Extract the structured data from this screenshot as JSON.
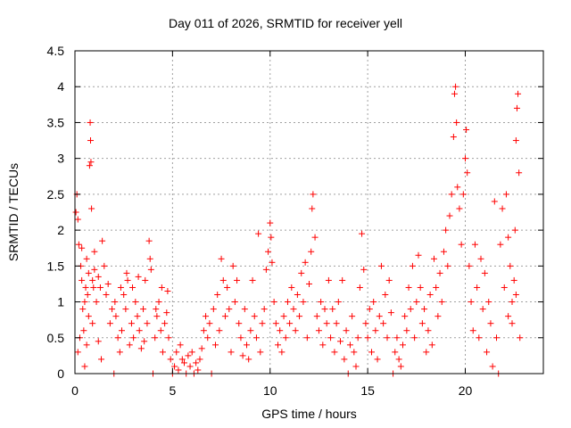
{
  "chart_data": {
    "type": "scatter",
    "title": "Day 011 of 2026, SRMTID for receiver yell",
    "xlabel": "GPS time / hours",
    "ylabel": "SRMTID / TECUs",
    "xlim": [
      0,
      24
    ],
    "ylim": [
      0,
      4.5
    ],
    "xticks": [
      0,
      5,
      10,
      15,
      20
    ],
    "yticks": [
      0,
      0.5,
      1,
      1.5,
      2,
      2.5,
      3,
      3.5,
      4,
      4.5
    ],
    "xtick_labels": [
      "0",
      "5",
      "10",
      "15",
      "20"
    ],
    "ytick_labels": [
      "0",
      "0.5",
      "1",
      "1.5",
      "2",
      "2.5",
      "3",
      "3.5",
      "4",
      "4.5"
    ],
    "grid": true,
    "marker": "+",
    "color": "#ff0000",
    "series": [
      {
        "name": "SRMTID",
        "points": [
          [
            0.05,
            2.25
          ],
          [
            0.1,
            2.5
          ],
          [
            0.15,
            2.15
          ],
          [
            0.2,
            1.8
          ],
          [
            0.3,
            1.5
          ],
          [
            0.35,
            1.3
          ],
          [
            0.4,
            0.9
          ],
          [
            0.45,
            0.6
          ],
          [
            0.5,
            1.0
          ],
          [
            0.55,
            1.2
          ],
          [
            0.6,
            1.6
          ],
          [
            0.65,
            1.1
          ],
          [
            0.7,
            0.8
          ],
          [
            0.75,
            2.9
          ],
          [
            0.78,
            3.5
          ],
          [
            0.8,
            3.25
          ],
          [
            0.82,
            2.95
          ],
          [
            0.85,
            2.3
          ],
          [
            0.9,
            1.3
          ],
          [
            0.95,
            1.2
          ],
          [
            1.0,
            1.45
          ],
          [
            1.1,
            1.0
          ],
          [
            1.2,
            1.35
          ],
          [
            1.3,
            1.2
          ],
          [
            1.4,
            1.85
          ],
          [
            1.5,
            1.5
          ],
          [
            1.6,
            1.1
          ],
          [
            1.7,
            1.25
          ],
          [
            1.8,
            0.7
          ],
          [
            1.9,
            0.9
          ],
          [
            0.15,
            0.3
          ],
          [
            0.25,
            0.5
          ],
          [
            0.5,
            0.1
          ],
          [
            0.6,
            0.4
          ],
          [
            1.35,
            0.2
          ],
          [
            1.2,
            0.45
          ],
          [
            0.9,
            0.7
          ],
          [
            1.0,
            1.7
          ],
          [
            0.35,
            1.75
          ],
          [
            0.7,
            1.4
          ],
          [
            2.0,
            0.0
          ],
          [
            2.1,
            0.8
          ],
          [
            2.2,
            0.5
          ],
          [
            2.3,
            0.3
          ],
          [
            2.4,
            0.6
          ],
          [
            2.5,
            1.1
          ],
          [
            2.6,
            0.9
          ],
          [
            2.7,
            1.3
          ],
          [
            2.8,
            0.4
          ],
          [
            2.9,
            0.7
          ],
          [
            3.0,
            0.5
          ],
          [
            3.1,
            1.0
          ],
          [
            3.2,
            0.8
          ],
          [
            3.3,
            0.6
          ],
          [
            3.4,
            0.35
          ],
          [
            3.5,
            0.9
          ],
          [
            3.6,
            1.3
          ],
          [
            3.7,
            0.7
          ],
          [
            3.8,
            1.85
          ],
          [
            3.9,
            1.45
          ],
          [
            4.0,
            0.0
          ],
          [
            4.1,
            0.5
          ],
          [
            4.2,
            0.8
          ],
          [
            4.3,
            1.0
          ],
          [
            4.4,
            0.6
          ],
          [
            4.5,
            0.3
          ],
          [
            4.6,
            0.7
          ],
          [
            4.7,
            0.85
          ],
          [
            4.8,
            0.5
          ],
          [
            4.9,
            0.2
          ],
          [
            2.05,
            1.0
          ],
          [
            2.35,
            1.2
          ],
          [
            2.65,
            1.4
          ],
          [
            2.95,
            1.2
          ],
          [
            3.25,
            1.35
          ],
          [
            3.55,
            0.45
          ],
          [
            3.85,
            1.6
          ],
          [
            4.15,
            0.9
          ],
          [
            4.45,
            1.2
          ],
          [
            4.75,
            1.15
          ],
          [
            5.0,
            0.0
          ],
          [
            5.1,
            0.1
          ],
          [
            5.2,
            0.3
          ],
          [
            5.3,
            0.05
          ],
          [
            5.4,
            0.4
          ],
          [
            5.5,
            0.2
          ],
          [
            5.6,
            0.15
          ],
          [
            5.7,
            0.0
          ],
          [
            5.8,
            0.25
          ],
          [
            5.9,
            0.1
          ],
          [
            6.0,
            0.3
          ],
          [
            6.1,
            0.0
          ],
          [
            6.2,
            0.15
          ],
          [
            6.3,
            0.05
          ],
          [
            6.4,
            0.2
          ],
          [
            6.5,
            0.35
          ],
          [
            6.6,
            0.6
          ],
          [
            6.7,
            0.8
          ],
          [
            6.8,
            0.5
          ],
          [
            6.9,
            0.7
          ],
          [
            7.0,
            0.0
          ],
          [
            7.1,
            0.9
          ],
          [
            7.2,
            0.4
          ],
          [
            7.3,
            1.1
          ],
          [
            7.4,
            0.6
          ],
          [
            7.5,
            1.6
          ],
          [
            7.6,
            1.3
          ],
          [
            7.7,
            0.8
          ],
          [
            7.8,
            1.2
          ],
          [
            7.9,
            0.9
          ],
          [
            8.0,
            0.3
          ],
          [
            8.1,
            1.5
          ],
          [
            8.2,
            1.0
          ],
          [
            8.3,
            1.3
          ],
          [
            8.4,
            0.7
          ],
          [
            8.5,
            0.5
          ],
          [
            8.6,
            0.25
          ],
          [
            8.7,
            0.9
          ],
          [
            8.8,
            0.4
          ],
          [
            8.9,
            0.2
          ],
          [
            9.0,
            0.6
          ],
          [
            9.1,
            1.3
          ],
          [
            9.2,
            0.8
          ],
          [
            9.3,
            0.5
          ],
          [
            9.4,
            1.95
          ],
          [
            9.5,
            0.3
          ],
          [
            9.6,
            0.7
          ],
          [
            9.7,
            0.9
          ],
          [
            9.8,
            1.45
          ],
          [
            9.9,
            1.7
          ],
          [
            10.0,
            2.1
          ],
          [
            10.05,
            1.9
          ],
          [
            10.1,
            1.55
          ],
          [
            10.2,
            1.0
          ],
          [
            10.3,
            0.7
          ],
          [
            10.4,
            0.4
          ],
          [
            10.5,
            0.6
          ],
          [
            10.6,
            0.3
          ],
          [
            10.7,
            0.8
          ],
          [
            10.8,
            0.5
          ],
          [
            10.9,
            1.0
          ],
          [
            11.0,
            0.7
          ],
          [
            11.1,
            1.2
          ],
          [
            11.2,
            0.9
          ],
          [
            11.3,
            0.6
          ],
          [
            11.4,
            1.1
          ],
          [
            11.5,
            0.8
          ],
          [
            11.6,
            1.4
          ],
          [
            11.7,
            1.0
          ],
          [
            11.8,
            1.55
          ],
          [
            11.9,
            0.5
          ],
          [
            12.0,
            1.25
          ],
          [
            12.1,
            1.7
          ],
          [
            12.15,
            2.3
          ],
          [
            12.2,
            2.5
          ],
          [
            12.3,
            1.9
          ],
          [
            12.4,
            0.8
          ],
          [
            12.5,
            0.6
          ],
          [
            12.6,
            1.0
          ],
          [
            12.7,
            0.4
          ],
          [
            12.8,
            0.9
          ],
          [
            12.9,
            0.7
          ],
          [
            13.0,
            1.3
          ],
          [
            13.1,
            0.5
          ],
          [
            13.2,
            0.9
          ],
          [
            13.3,
            0.3
          ],
          [
            13.4,
            0.7
          ],
          [
            13.5,
            1.0
          ],
          [
            13.6,
            0.45
          ],
          [
            13.7,
            1.3
          ],
          [
            13.8,
            0.2
          ],
          [
            13.9,
            0.6
          ],
          [
            14.0,
            0.0
          ],
          [
            14.1,
            0.4
          ],
          [
            14.2,
            0.8
          ],
          [
            14.3,
            0.3
          ],
          [
            14.4,
            0.1
          ],
          [
            14.5,
            0.5
          ],
          [
            14.6,
            1.2
          ],
          [
            14.7,
            1.95
          ],
          [
            14.8,
            1.45
          ],
          [
            14.9,
            0.7
          ],
          [
            15.0,
            0.5
          ],
          [
            15.1,
            0.9
          ],
          [
            15.2,
            0.3
          ],
          [
            15.3,
            1.0
          ],
          [
            15.4,
            0.6
          ],
          [
            15.5,
            0.2
          ],
          [
            15.6,
            0.8
          ],
          [
            15.7,
            1.5
          ],
          [
            15.8,
            0.7
          ],
          [
            15.9,
            1.1
          ],
          [
            16.0,
            0.5
          ],
          [
            16.1,
            1.3
          ],
          [
            16.2,
            0.85
          ],
          [
            16.3,
            0.0
          ],
          [
            16.4,
            0.3
          ],
          [
            16.5,
            0.5
          ],
          [
            16.6,
            0.2
          ],
          [
            16.7,
            0.1
          ],
          [
            16.8,
            0.4
          ],
          [
            16.9,
            0.8
          ],
          [
            17.0,
            0.6
          ],
          [
            17.1,
            1.2
          ],
          [
            17.2,
            0.9
          ],
          [
            17.3,
            1.5
          ],
          [
            17.4,
            0.5
          ],
          [
            17.5,
            1.0
          ],
          [
            17.6,
            1.65
          ],
          [
            17.7,
            1.2
          ],
          [
            17.8,
            0.7
          ],
          [
            17.9,
            0.9
          ],
          [
            18.0,
            0.3
          ],
          [
            18.1,
            0.6
          ],
          [
            18.2,
            1.1
          ],
          [
            18.3,
            0.4
          ],
          [
            18.4,
            1.6
          ],
          [
            18.5,
            1.2
          ],
          [
            18.6,
            0.8
          ],
          [
            18.7,
            1.4
          ],
          [
            18.8,
            1.0
          ],
          [
            18.9,
            1.7
          ],
          [
            19.0,
            2.0
          ],
          [
            19.1,
            1.5
          ],
          [
            19.2,
            2.2
          ],
          [
            19.3,
            2.5
          ],
          [
            19.4,
            3.3
          ],
          [
            19.45,
            3.9
          ],
          [
            19.5,
            4.0
          ],
          [
            19.55,
            3.5
          ],
          [
            19.6,
            2.6
          ],
          [
            19.7,
            2.3
          ],
          [
            19.8,
            1.8
          ],
          [
            19.9,
            2.5
          ],
          [
            20.0,
            3.0
          ],
          [
            20.05,
            3.4
          ],
          [
            20.1,
            2.8
          ],
          [
            20.2,
            1.5
          ],
          [
            20.3,
            1.0
          ],
          [
            20.4,
            0.6
          ],
          [
            20.5,
            1.8
          ],
          [
            20.6,
            1.2
          ],
          [
            20.7,
            0.5
          ],
          [
            20.8,
            1.6
          ],
          [
            20.9,
            0.9
          ],
          [
            21.0,
            1.4
          ],
          [
            21.1,
            0.3
          ],
          [
            21.2,
            1.0
          ],
          [
            21.3,
            0.7
          ],
          [
            21.4,
            0.1
          ],
          [
            21.5,
            2.4
          ],
          [
            21.6,
            0.5
          ],
          [
            21.7,
            0.0
          ],
          [
            21.8,
            1.8
          ],
          [
            21.9,
            2.3
          ],
          [
            22.0,
            1.2
          ],
          [
            22.1,
            2.5
          ],
          [
            22.2,
            0.8
          ],
          [
            22.3,
            1.5
          ],
          [
            22.4,
            1.0
          ],
          [
            22.5,
            1.3
          ],
          [
            22.55,
            2.0
          ],
          [
            22.6,
            3.25
          ],
          [
            22.65,
            3.7
          ],
          [
            22.7,
            3.9
          ],
          [
            22.75,
            2.8
          ],
          [
            22.8,
            0.5
          ],
          [
            22.6,
            1.1
          ],
          [
            22.4,
            0.7
          ],
          [
            22.2,
            1.9
          ]
        ]
      }
    ]
  }
}
